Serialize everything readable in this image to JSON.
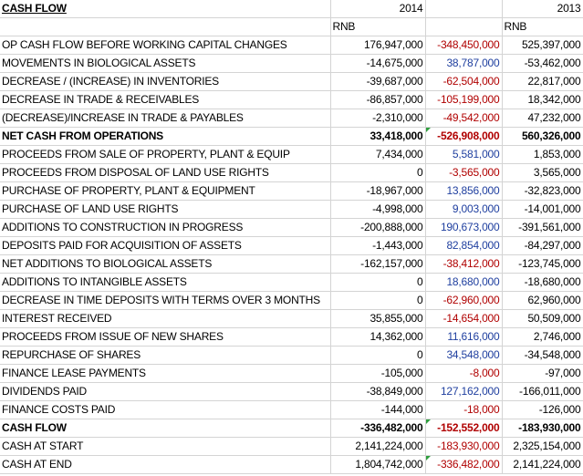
{
  "sheet": {
    "title": "CASH FLOW",
    "year_a": "2014",
    "year_b": "2013",
    "currency_a": "RNB",
    "currency_b": "RNB",
    "colors": {
      "blue": "#1f3f9f",
      "red": "#b00000",
      "flag_green": "#2e9e3e"
    },
    "rows": [
      {
        "label": "OP CASH FLOW BEFORE WORKING CAPITAL CHANGES",
        "v2014": "176,947,000",
        "diff": "-348,450,000",
        "v2013": "525,397,000",
        "diff_color": "red"
      },
      {
        "label": "MOVEMENTS IN BIOLOGICAL ASSETS",
        "v2014": "-14,675,000",
        "diff": "38,787,000",
        "v2013": "-53,462,000",
        "diff_color": "blue"
      },
      {
        "label": "DECREASE / (INCREASE) IN INVENTORIES",
        "v2014": "-39,687,000",
        "diff": "-62,504,000",
        "v2013": "22,817,000",
        "diff_color": "red"
      },
      {
        "label": "DECREASE IN TRADE & RECEIVABLES",
        "v2014": "-86,857,000",
        "diff": "-105,199,000",
        "v2013": "18,342,000",
        "diff_color": "red"
      },
      {
        "label": "(DECREASE)/INCREASE IN TRADE & PAYABLES",
        "v2014": "-2,310,000",
        "diff": "-49,542,000",
        "v2013": "47,232,000",
        "diff_color": "red"
      },
      {
        "label": "NET CASH FROM OPERATIONS",
        "v2014": "33,418,000",
        "diff": "-526,908,000",
        "v2013": "560,326,000",
        "diff_color": "red",
        "bold": true,
        "flag": true
      },
      {
        "label": "PROCEEDS FROM SALE OF PROPERTY, PLANT & EQUIP",
        "v2014": "7,434,000",
        "diff": "5,581,000",
        "v2013": "1,853,000",
        "diff_color": "blue"
      },
      {
        "label": "PROCEEDS FROM DISPOSAL OF LAND USE RIGHTS",
        "v2014": "0",
        "diff": "-3,565,000",
        "v2013": "3,565,000",
        "diff_color": "red"
      },
      {
        "label": "PURCHASE OF PROPERTY, PLANT & EQUIPMENT",
        "v2014": "-18,967,000",
        "diff": "13,856,000",
        "v2013": "-32,823,000",
        "diff_color": "blue"
      },
      {
        "label": "PURCHASE OF LAND USE RIGHTS",
        "v2014": "-4,998,000",
        "diff": "9,003,000",
        "v2013": "-14,001,000",
        "diff_color": "blue"
      },
      {
        "label": "ADDITIONS TO CONSTRUCTION IN PROGRESS",
        "v2014": "-200,888,000",
        "diff": "190,673,000",
        "v2013": "-391,561,000",
        "diff_color": "blue"
      },
      {
        "label": "DEPOSITS PAID FOR ACQUISITION OF ASSETS",
        "v2014": "-1,443,000",
        "diff": "82,854,000",
        "v2013": "-84,297,000",
        "diff_color": "blue"
      },
      {
        "label": "NET ADDITIONS TO BIOLOGICAL ASSETS",
        "v2014": "-162,157,000",
        "diff": "-38,412,000",
        "v2013": "-123,745,000",
        "diff_color": "red"
      },
      {
        "label": "ADDITIONS TO INTANGIBLE ASSETS",
        "v2014": "0",
        "diff": "18,680,000",
        "v2013": "-18,680,000",
        "diff_color": "blue"
      },
      {
        "label": "DECREASE IN TIME DEPOSITS WITH TERMS OVER 3 MONTHS",
        "v2014": "0",
        "diff": "-62,960,000",
        "v2013": "62,960,000",
        "diff_color": "red"
      },
      {
        "label": "INTEREST RECEIVED",
        "v2014": "35,855,000",
        "diff": "-14,654,000",
        "v2013": "50,509,000",
        "diff_color": "red"
      },
      {
        "label": "PROCEEDS FROM ISSUE OF NEW SHARES",
        "v2014": "14,362,000",
        "diff": "11,616,000",
        "v2013": "2,746,000",
        "diff_color": "blue"
      },
      {
        "label": "REPURCHASE OF SHARES",
        "v2014": "0",
        "diff": "34,548,000",
        "v2013": "-34,548,000",
        "diff_color": "blue"
      },
      {
        "label": "FINANCE LEASE PAYMENTS",
        "v2014": "-105,000",
        "diff": "-8,000",
        "v2013": "-97,000",
        "diff_color": "red"
      },
      {
        "label": "DIVIDENDS PAID",
        "v2014": "-38,849,000",
        "diff": "127,162,000",
        "v2013": "-166,011,000",
        "diff_color": "blue"
      },
      {
        "label": "FINANCE COSTS PAID",
        "v2014": "-144,000",
        "diff": "-18,000",
        "v2013": "-126,000",
        "diff_color": "red"
      },
      {
        "label": "CASH FLOW",
        "v2014": "-336,482,000",
        "diff": "-152,552,000",
        "v2013": "-183,930,000",
        "diff_color": "red",
        "bold": true,
        "flag": true
      },
      {
        "label": "CASH AT START",
        "v2014": "2,141,224,000",
        "diff": "-183,930,000",
        "v2013": "2,325,154,000",
        "diff_color": "red"
      },
      {
        "label": "CASH AT END",
        "v2014": "1,804,742,000",
        "diff": "-336,482,000",
        "v2013": "2,141,224,000",
        "diff_color": "red",
        "flag": true
      }
    ]
  }
}
